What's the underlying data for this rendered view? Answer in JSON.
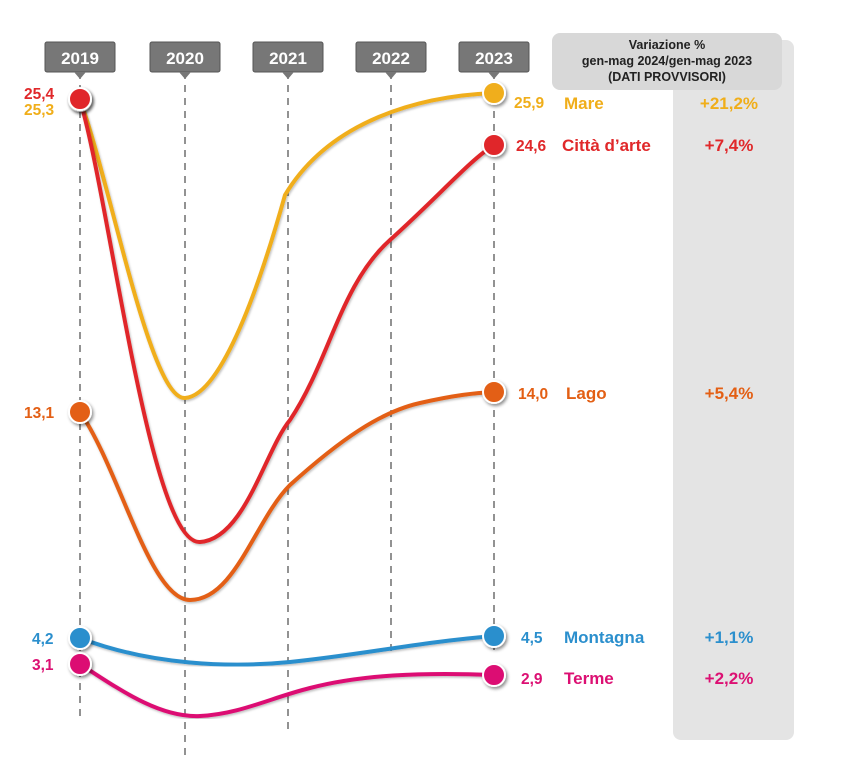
{
  "chart_data": {
    "type": "line",
    "categories": [
      "2019",
      "2020",
      "2021",
      "2022",
      "2023"
    ],
    "side_panel": {
      "header_lines": [
        "Variazione %",
        "gen-mag 2024/gen-mag 2023",
        "(DATI PROVVISORI)"
      ]
    },
    "series": [
      {
        "name": "Mare",
        "color": "#f0ae1a",
        "start_label": "25,3",
        "end_label": "25,9",
        "change": "+21,2%",
        "values": [
          25.3,
          null,
          null,
          null,
          25.9
        ]
      },
      {
        "name": "Città d’arte",
        "color": "#e0282a",
        "start_label": "25,4",
        "end_label": "24,6",
        "change": "+7,4%",
        "values": [
          25.4,
          null,
          null,
          null,
          24.6
        ]
      },
      {
        "name": "Lago",
        "color": "#e35f14",
        "start_label": "13,1",
        "end_label": "14,0",
        "change": "+5,4%",
        "values": [
          13.1,
          null,
          null,
          null,
          14.0
        ]
      },
      {
        "name": "Montagna",
        "color": "#2b8fcd",
        "start_label": "4,2",
        "end_label": "4,5",
        "change": "+1,1%",
        "values": [
          4.2,
          null,
          null,
          null,
          4.5
        ]
      },
      {
        "name": "Terme",
        "color": "#dc1073",
        "start_label": "3,1",
        "end_label": "2,9",
        "change": "+2,2%",
        "values": [
          3.1,
          null,
          null,
          null,
          2.9
        ]
      }
    ]
  }
}
